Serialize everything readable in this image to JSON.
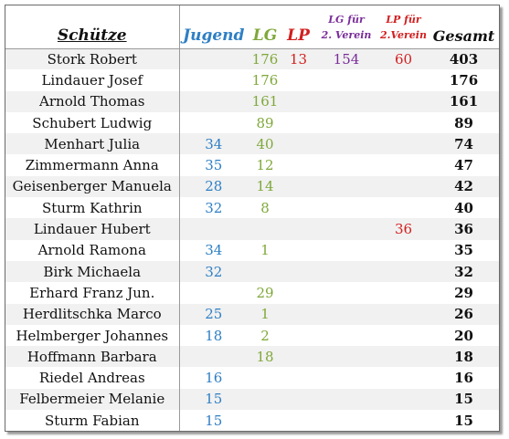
{
  "headers": {
    "name": "Schütze",
    "jugend": "Jugend",
    "lg": "LG",
    "lp": "LP",
    "lg2_line1": "LG für",
    "lg2_line2": "2. Verein",
    "lp2_line1": "LP für",
    "lp2_line2": "2.Verein",
    "gesamt": "Gesamt"
  },
  "colors": {
    "jugend": "#2e7fc4",
    "lg": "#7fa83a",
    "lp": "#d21f1f",
    "lg2": "#7a2d9a",
    "lp2": "#d21f1f",
    "row_stripe": "#f1f1f1"
  },
  "rows": [
    {
      "name": "Stork Robert",
      "jugend": "",
      "lg": "176",
      "lp": "13",
      "lg2": "154",
      "lp2": "60",
      "gesamt": "403"
    },
    {
      "name": "Lindauer Josef",
      "jugend": "",
      "lg": "176",
      "lp": "",
      "lg2": "",
      "lp2": "",
      "gesamt": "176"
    },
    {
      "name": "Arnold Thomas",
      "jugend": "",
      "lg": "161",
      "lp": "",
      "lg2": "",
      "lp2": "",
      "gesamt": "161"
    },
    {
      "name": "Schubert Ludwig",
      "jugend": "",
      "lg": "89",
      "lp": "",
      "lg2": "",
      "lp2": "",
      "gesamt": "89"
    },
    {
      "name": "Menhart Julia",
      "jugend": "34",
      "lg": "40",
      "lp": "",
      "lg2": "",
      "lp2": "",
      "gesamt": "74"
    },
    {
      "name": "Zimmermann Anna",
      "jugend": "35",
      "lg": "12",
      "lp": "",
      "lg2": "",
      "lp2": "",
      "gesamt": "47"
    },
    {
      "name": "Geisenberger Manuela",
      "jugend": "28",
      "lg": "14",
      "lp": "",
      "lg2": "",
      "lp2": "",
      "gesamt": "42"
    },
    {
      "name": "Sturm Kathrin",
      "jugend": "32",
      "lg": "8",
      "lp": "",
      "lg2": "",
      "lp2": "",
      "gesamt": "40"
    },
    {
      "name": "Lindauer Hubert",
      "jugend": "",
      "lg": "",
      "lp": "",
      "lg2": "",
      "lp2": "36",
      "gesamt": "36"
    },
    {
      "name": "Arnold Ramona",
      "jugend": "34",
      "lg": "1",
      "lp": "",
      "lg2": "",
      "lp2": "",
      "gesamt": "35"
    },
    {
      "name": "Birk Michaela",
      "jugend": "32",
      "lg": "",
      "lp": "",
      "lg2": "",
      "lp2": "",
      "gesamt": "32"
    },
    {
      "name": "Erhard Franz Jun.",
      "jugend": "",
      "lg": "29",
      "lp": "",
      "lg2": "",
      "lp2": "",
      "gesamt": "29"
    },
    {
      "name": "Herdlitschka Marco",
      "jugend": "25",
      "lg": "1",
      "lp": "",
      "lg2": "",
      "lp2": "",
      "gesamt": "26"
    },
    {
      "name": "Helmberger Johannes",
      "jugend": "18",
      "lg": "2",
      "lp": "",
      "lg2": "",
      "lp2": "",
      "gesamt": "20"
    },
    {
      "name": "Hoffmann Barbara",
      "jugend": "",
      "lg": "18",
      "lp": "",
      "lg2": "",
      "lp2": "",
      "gesamt": "18"
    },
    {
      "name": "Riedel Andreas",
      "jugend": "16",
      "lg": "",
      "lp": "",
      "lg2": "",
      "lp2": "",
      "gesamt": "16"
    },
    {
      "name": "Felbermeier Melanie",
      "jugend": "15",
      "lg": "",
      "lp": "",
      "lg2": "",
      "lp2": "",
      "gesamt": "15"
    },
    {
      "name": "Sturm Fabian",
      "jugend": "15",
      "lg": "",
      "lp": "",
      "lg2": "",
      "lp2": "",
      "gesamt": "15"
    }
  ]
}
